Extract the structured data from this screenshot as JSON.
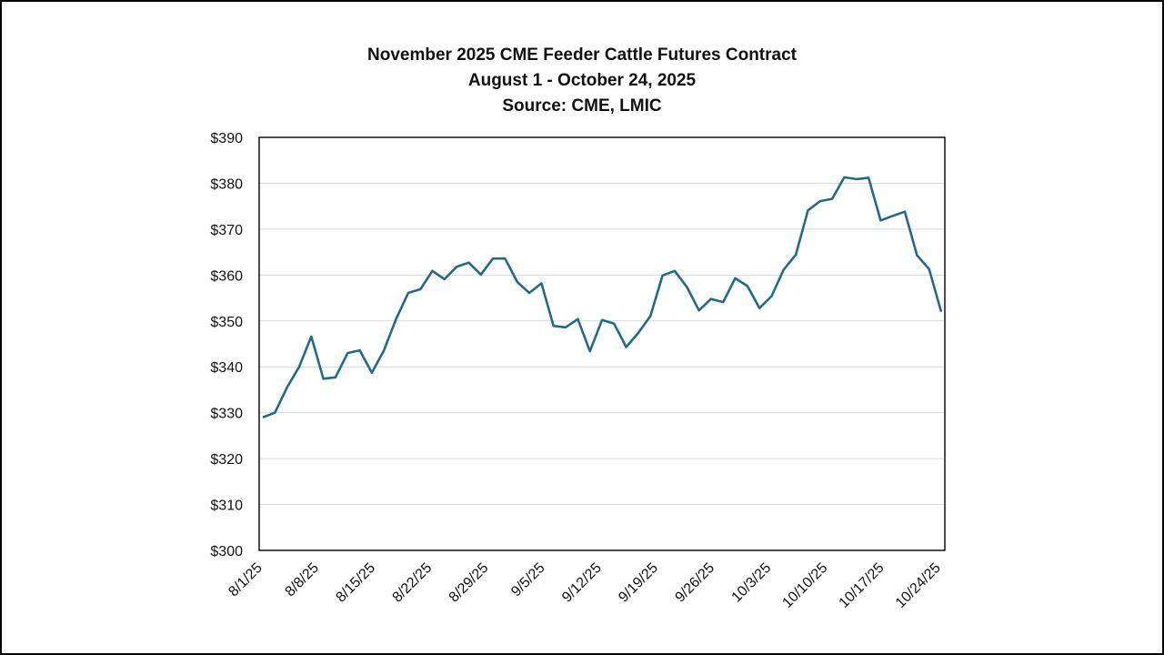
{
  "chart_data": {
    "type": "line",
    "title": [
      "November 2025 CME Feeder Cattle Futures Contract",
      "August 1 - October 24, 2025",
      "Source: CME, LMIC"
    ],
    "xlabel": "",
    "ylabel": "",
    "ylim": [
      300,
      390
    ],
    "y_ticks": [
      "$300",
      "$310",
      "$320",
      "$330",
      "$340",
      "$350",
      "$360",
      "$370",
      "$380",
      "$390"
    ],
    "x_tick_labels": [
      "8/1/25",
      "8/8/25",
      "8/15/25",
      "8/22/25",
      "8/29/25",
      "9/5/25",
      "9/12/25",
      "9/19/25",
      "9/26/25",
      "10/3/25",
      "10/10/25",
      "10/17/25",
      "10/24/25"
    ],
    "grid": "horizontal",
    "line_color": "#24698a",
    "series": [
      {
        "name": "November 2025 Feeder Cattle",
        "values": [
          329.0,
          330.0,
          335.5,
          340.0,
          346.6,
          337.4,
          337.7,
          343.0,
          343.6,
          338.7,
          343.6,
          350.4,
          356.1,
          356.9,
          360.9,
          359.1,
          361.8,
          362.7,
          360.1,
          363.6,
          363.6,
          358.5,
          356.1,
          358.2,
          348.9,
          348.6,
          350.4,
          343.4,
          350.2,
          349.4,
          344.3,
          347.4,
          351.1,
          359.9,
          360.9,
          357.4,
          352.3,
          354.8,
          354.1,
          359.3,
          357.6,
          352.8,
          355.4,
          361.2,
          364.4,
          374.1,
          376.1,
          376.6,
          381.3,
          380.9,
          381.2,
          371.9,
          372.9,
          373.8,
          364.3,
          361.3,
          352.0
        ]
      }
    ]
  }
}
